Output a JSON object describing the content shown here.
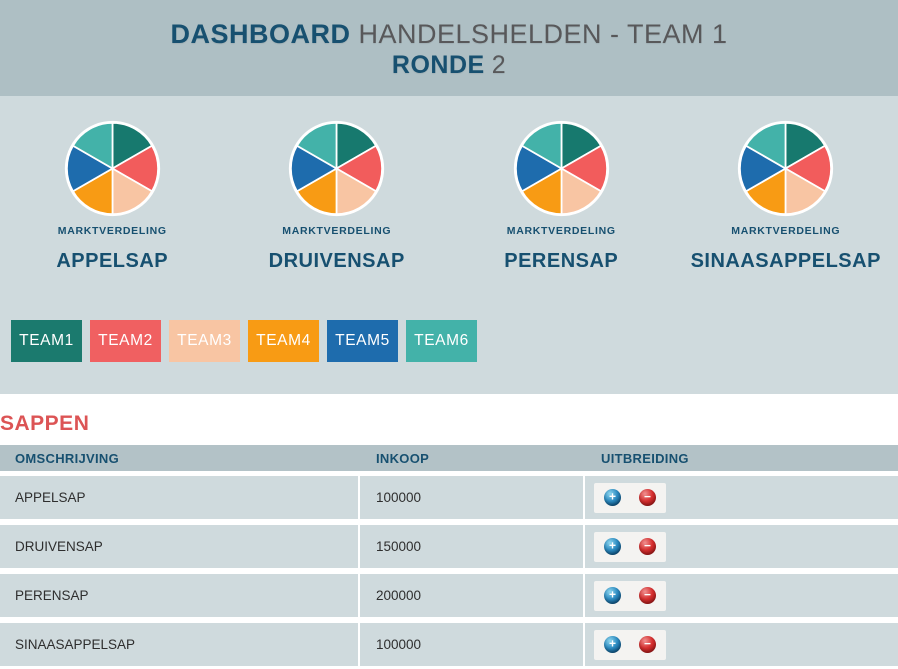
{
  "header": {
    "title_strong": "DASHBOARD",
    "title_rest": "HANDELSHELDEN - TEAM 1",
    "subtitle_strong": "RONDE",
    "subtitle_rest": "2"
  },
  "market": {
    "caption": "MARKTVERDELING",
    "products": [
      "APPELSAP",
      "DRUIVENSAP",
      "PERENSAP",
      "SINAASAPPELSAP"
    ],
    "slice_colors": [
      "#17796e",
      "#f25c5c",
      "#f8c5a3",
      "#f89b14",
      "#1e6cad",
      "#43b2a9"
    ]
  },
  "chart_data": [
    {
      "type": "pie",
      "title": "MARKTVERDELING APPELSAP",
      "labels": [
        "TEAM1",
        "TEAM2",
        "TEAM3",
        "TEAM4",
        "TEAM5",
        "TEAM6"
      ],
      "values": [
        16.67,
        16.67,
        16.67,
        16.67,
        16.67,
        16.67
      ],
      "legend_position": "none"
    },
    {
      "type": "pie",
      "title": "MARKTVERDELING DRUIVENSAP",
      "labels": [
        "TEAM1",
        "TEAM2",
        "TEAM3",
        "TEAM4",
        "TEAM5",
        "TEAM6"
      ],
      "values": [
        16.67,
        16.67,
        16.67,
        16.67,
        16.67,
        16.67
      ],
      "legend_position": "none"
    },
    {
      "type": "pie",
      "title": "MARKTVERDELING PERENSAP",
      "labels": [
        "TEAM1",
        "TEAM2",
        "TEAM3",
        "TEAM4",
        "TEAM5",
        "TEAM6"
      ],
      "values": [
        16.67,
        16.67,
        16.67,
        16.67,
        16.67,
        16.67
      ],
      "legend_position": "none"
    },
    {
      "type": "pie",
      "title": "MARKTVERDELING SINAASAPPELSAP",
      "labels": [
        "TEAM1",
        "TEAM2",
        "TEAM3",
        "TEAM4",
        "TEAM5",
        "TEAM6"
      ],
      "values": [
        16.67,
        16.67,
        16.67,
        16.67,
        16.67,
        16.67
      ],
      "legend_position": "none"
    }
  ],
  "teams": [
    {
      "label": "TEAM1",
      "color": "#1b7a6e"
    },
    {
      "label": "TEAM2",
      "color": "#f06061"
    },
    {
      "label": "TEAM3",
      "color": "#f8c5a3"
    },
    {
      "label": "TEAM4",
      "color": "#f89b14"
    },
    {
      "label": "TEAM5",
      "color": "#1e6cad"
    },
    {
      "label": "TEAM6",
      "color": "#43b2a9"
    }
  ],
  "section_title": "SAPPEN",
  "table": {
    "headers": [
      "OMSCHRIJVING",
      "INKOOP",
      "UITBREIDING"
    ],
    "rows": [
      {
        "name": "APPELSAP",
        "inkoop": "100000"
      },
      {
        "name": "DRUIVENSAP",
        "inkoop": "150000"
      },
      {
        "name": "PERENSAP",
        "inkoop": "200000"
      },
      {
        "name": "SINAASAPPELSAP",
        "inkoop": "100000"
      }
    ]
  },
  "icons": {
    "add_glyph": "+",
    "remove_glyph": "−"
  },
  "colors": {
    "header_bg": "#aebfc4",
    "section_bg": "#cfdadd",
    "table_header_bg": "#b3c2c7",
    "row_bg": "#cfdadd",
    "dark_blue": "#175070",
    "title_gray": "#58585a",
    "heading_red": "#dc5455"
  }
}
